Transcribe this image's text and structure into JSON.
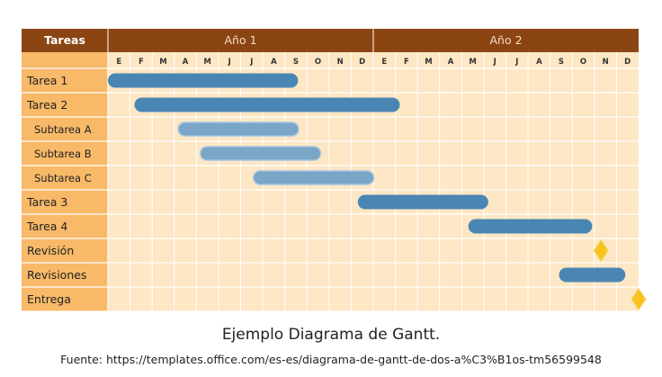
{
  "chart_data": {
    "type": "gantt",
    "header_tasks_label": "Tareas",
    "years": [
      {
        "label": "Año 1"
      },
      {
        "label": "Año 2"
      }
    ],
    "months": [
      "E",
      "F",
      "M",
      "A",
      "M",
      "J",
      "J",
      "A",
      "S",
      "O",
      "N",
      "D",
      "E",
      "F",
      "M",
      "A",
      "M",
      "J",
      "J",
      "A",
      "S",
      "O",
      "N",
      "D"
    ],
    "tasks": [
      {
        "name": "Tarea 1",
        "kind": "bar",
        "start": 0.0,
        "end": 8.6,
        "style": "main",
        "indent": false
      },
      {
        "name": "Tarea 2",
        "kind": "bar",
        "start": 1.2,
        "end": 13.2,
        "style": "main",
        "indent": false
      },
      {
        "name": "Subtarea A",
        "kind": "bar",
        "start": 3.2,
        "end": 8.6,
        "style": "sub",
        "indent": true
      },
      {
        "name": "Subtarea B",
        "kind": "bar",
        "start": 4.2,
        "end": 9.6,
        "style": "sub",
        "indent": true
      },
      {
        "name": "Subtarea C",
        "kind": "bar",
        "start": 6.6,
        "end": 12.0,
        "style": "sub",
        "indent": true
      },
      {
        "name": "Tarea 3",
        "kind": "bar",
        "start": 11.3,
        "end": 17.2,
        "style": "main",
        "indent": false
      },
      {
        "name": "Tarea 4",
        "kind": "bar",
        "start": 16.3,
        "end": 21.9,
        "style": "main",
        "indent": false
      },
      {
        "name": "Revisión",
        "kind": "milestone",
        "at": 22.3,
        "indent": false
      },
      {
        "name": "Revisiones",
        "kind": "bar",
        "start": 20.4,
        "end": 23.4,
        "style": "main",
        "indent": false
      },
      {
        "name": "Entrega",
        "kind": "milestone",
        "at": 24.0,
        "indent": false
      }
    ],
    "colors": {
      "header": "#8b4513",
      "month_row": "#fde7c4",
      "task_col": "#f8b968",
      "cell": "#fde7c4",
      "grid": "#ffffff",
      "main_bar": "#4a86b4",
      "sub_bar": "#7aa6c8",
      "milestone": "#f9c21c"
    }
  },
  "caption": {
    "title": "Ejemplo Diagrama de Gantt.",
    "source": "Fuente: https://templates.office.com/es-es/diagrama-de-gantt-de-dos-a%C3%B1os-tm56599548"
  }
}
